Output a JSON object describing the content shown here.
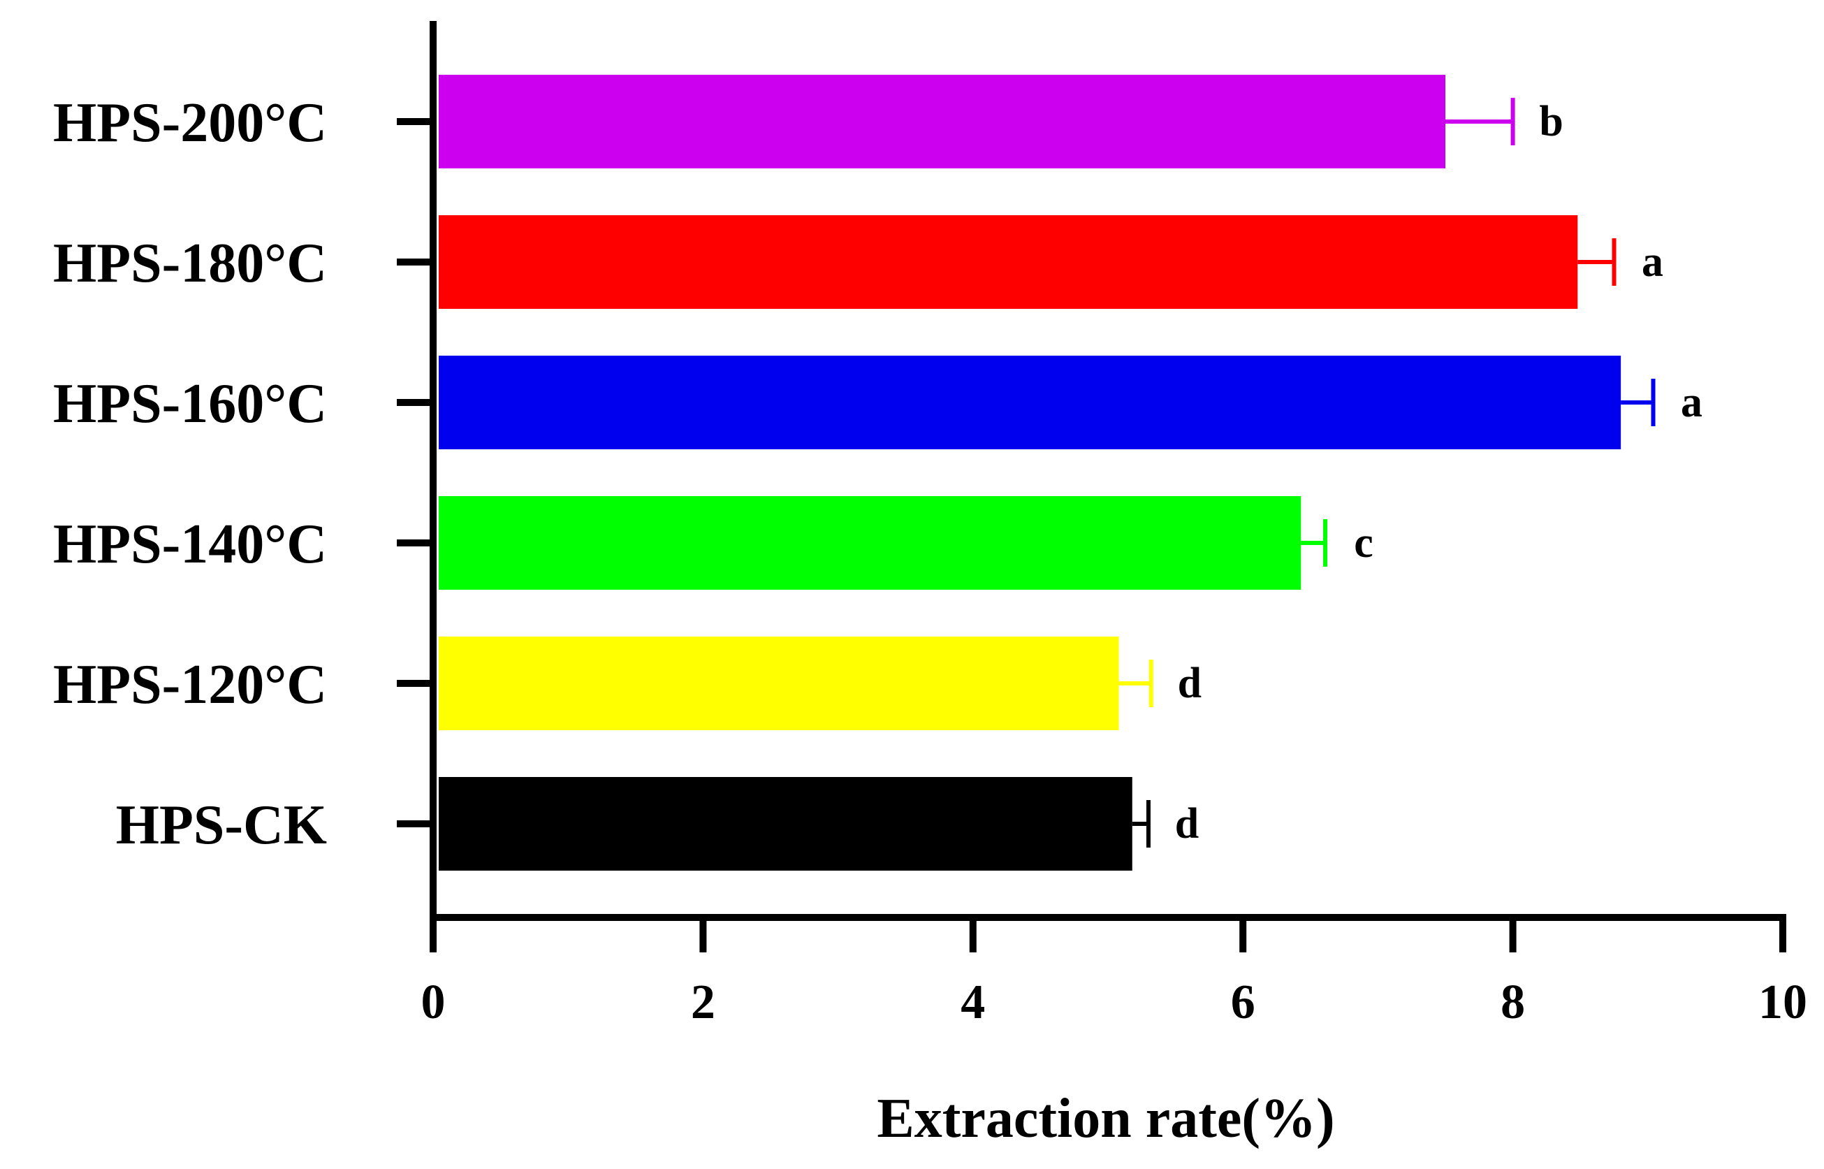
{
  "chart_data": {
    "type": "bar",
    "orientation": "horizontal",
    "title": "",
    "xlabel": "Extraction rate(%)",
    "ylabel": "",
    "xlim": [
      0,
      10
    ],
    "xticks": [
      0,
      2,
      4,
      6,
      8,
      10
    ],
    "xtick_labels": [
      "0",
      "2",
      "4",
      "6",
      "8",
      "10"
    ],
    "categories": [
      "HPS-200°C",
      "HPS-180°C",
      "HPS-160°C",
      "HPS-140°C",
      "HPS-120°C",
      "HPS-CK"
    ],
    "values": [
      7.5,
      8.48,
      8.8,
      6.43,
      5.08,
      5.18
    ],
    "errors": [
      0.5,
      0.27,
      0.24,
      0.18,
      0.24,
      0.12
    ],
    "significance": [
      "b",
      "a",
      "a",
      "c",
      "d",
      "d"
    ],
    "colors": [
      "#cc00ee",
      "#ff0000",
      "#0000ee",
      "#00ff00",
      "#ffff00",
      "#000000"
    ],
    "grid": false,
    "legend": "none"
  }
}
